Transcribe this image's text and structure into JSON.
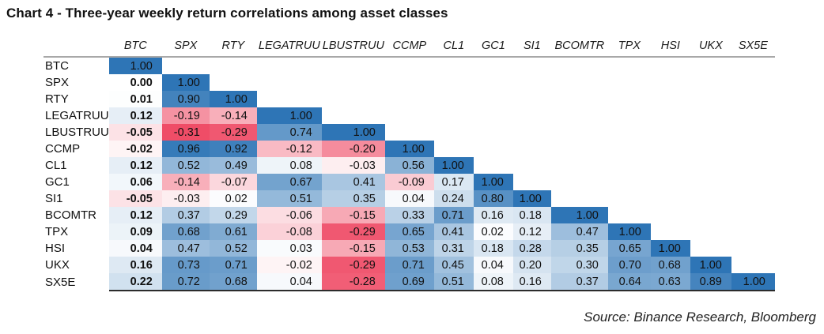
{
  "title": "Chart 4 - Three-year weekly return correlations among asset classes",
  "source": "Source: Binance Research, Bloomberg",
  "chart_data": {
    "type": "heatmap",
    "title": "Chart 4 - Three-year weekly return correlations among asset classes",
    "source": "Source: Binance Research, Bloomberg",
    "labels": [
      "BTC",
      "SPX",
      "RTY",
      "LEGATRUU",
      "LBUSTRUU",
      "CCMP",
      "CL1",
      "GC1",
      "SI1",
      "BCOMTR",
      "TPX",
      "HSI",
      "UKX",
      "SX5E"
    ],
    "matrix": [
      [
        1.0
      ],
      [
        0.0,
        1.0
      ],
      [
        0.01,
        0.9,
        1.0
      ],
      [
        0.12,
        -0.19,
        -0.14,
        1.0
      ],
      [
        -0.05,
        -0.31,
        -0.29,
        0.74,
        1.0
      ],
      [
        -0.02,
        0.96,
        0.92,
        -0.12,
        -0.2,
        1.0
      ],
      [
        0.12,
        0.52,
        0.49,
        0.08,
        -0.03,
        0.56,
        1.0
      ],
      [
        0.06,
        -0.14,
        -0.07,
        0.67,
        0.41,
        -0.09,
        0.17,
        1.0
      ],
      [
        -0.05,
        -0.03,
        0.02,
        0.51,
        0.35,
        0.04,
        0.24,
        0.8,
        1.0
      ],
      [
        0.12,
        0.37,
        0.29,
        -0.06,
        -0.15,
        0.33,
        0.71,
        0.16,
        0.18,
        1.0
      ],
      [
        0.09,
        0.68,
        0.61,
        -0.08,
        -0.29,
        0.65,
        0.41,
        0.02,
        0.12,
        0.47,
        1.0
      ],
      [
        0.04,
        0.47,
        0.52,
        0.03,
        -0.15,
        0.53,
        0.31,
        0.18,
        0.28,
        0.35,
        0.65,
        1.0
      ],
      [
        0.16,
        0.73,
        0.71,
        -0.02,
        -0.29,
        0.71,
        0.45,
        0.04,
        0.2,
        0.3,
        0.7,
        0.68,
        1.0
      ],
      [
        0.22,
        0.72,
        0.68,
        0.04,
        -0.28,
        0.69,
        0.51,
        0.08,
        0.16,
        0.37,
        0.64,
        0.63,
        0.89,
        1.0
      ]
    ],
    "layout": "lower-triangular",
    "colors": {
      "positive_max": "#2E75B6",
      "negative_min": "#EF4D67",
      "midpoint": "#FFFFFF"
    },
    "scale": {
      "min": -0.31,
      "max": 1.0
    }
  }
}
